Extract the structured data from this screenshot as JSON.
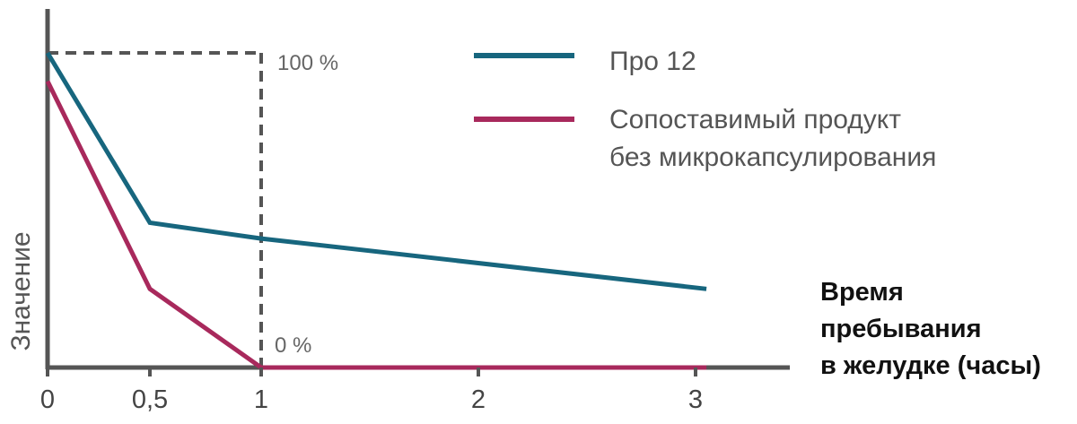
{
  "chart_data": {
    "type": "line",
    "xlabel_lines": [
      "Время",
      "пребывания",
      "в желудке (часы)"
    ],
    "ylabel": "Значение",
    "x_ticks": [
      "0",
      "0,5",
      "1",
      "2",
      "3"
    ],
    "x_tick_values": [
      0,
      0.5,
      1,
      2,
      3
    ],
    "xlim": [
      0,
      3.45
    ],
    "ylim": [
      0,
      100
    ],
    "series": [
      {
        "name": "Про 12",
        "color": "#17667e",
        "x": [
          0,
          0.5,
          1,
          3.05
        ],
        "y": [
          100,
          46,
          41,
          25
        ]
      },
      {
        "name_lines": [
          "Сопоставимый продукт",
          "без микрокапсулирования"
        ],
        "color": "#a8295c",
        "x": [
          0,
          0.5,
          1,
          3.05
        ],
        "y": [
          91,
          25,
          0,
          0
        ]
      }
    ],
    "reference_box": {
      "x_range": [
        0,
        1
      ],
      "y_top": 100,
      "color": "#555555",
      "label_top": "100 %",
      "label_bottom": "0 %"
    },
    "grid": false,
    "legend_position": "top-right"
  }
}
